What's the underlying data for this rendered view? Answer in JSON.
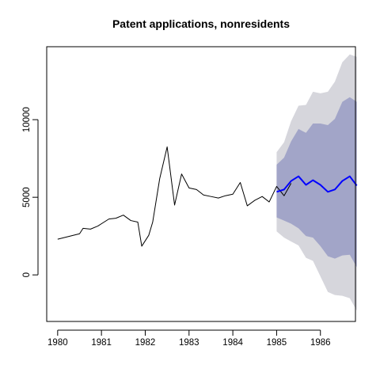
{
  "chart_data": {
    "type": "line",
    "title": "Patent applications, nonresidents",
    "xlabel": "",
    "ylabel": "",
    "xlim": [
      1979.75,
      1986.8
    ],
    "ylim": [
      -3000,
      14700
    ],
    "x_ticks": [
      1980,
      1981,
      1982,
      1983,
      1984,
      1985,
      1986
    ],
    "y_ticks": [
      0,
      5000,
      10000
    ],
    "grid": false,
    "legend": "none",
    "colors": {
      "history": "#000000",
      "forecast": "#0000ff",
      "band_80": "#a2a5c8",
      "band_95": "#d6d6dc"
    },
    "series": [
      {
        "role": "history",
        "points": [
          [
            1980.0,
            2300
          ],
          [
            1980.5,
            2650
          ],
          [
            1980.58,
            3000
          ],
          [
            1980.75,
            2950
          ],
          [
            1980.92,
            3150
          ],
          [
            1981.17,
            3600
          ],
          [
            1981.33,
            3650
          ],
          [
            1981.5,
            3850
          ],
          [
            1981.67,
            3500
          ],
          [
            1981.83,
            3400
          ],
          [
            1981.92,
            1850
          ],
          [
            1982.08,
            2550
          ],
          [
            1982.17,
            3400
          ],
          [
            1982.33,
            6200
          ],
          [
            1982.5,
            8250
          ],
          [
            1982.67,
            4500
          ],
          [
            1982.83,
            6500
          ],
          [
            1983.0,
            5600
          ],
          [
            1983.17,
            5500
          ],
          [
            1983.33,
            5150
          ],
          [
            1983.5,
            5050
          ],
          [
            1983.67,
            4950
          ],
          [
            1983.83,
            5100
          ],
          [
            1984.0,
            5200
          ],
          [
            1984.17,
            5950
          ],
          [
            1984.33,
            4450
          ],
          [
            1984.5,
            4800
          ],
          [
            1984.67,
            5050
          ],
          [
            1984.83,
            4700
          ],
          [
            1985.0,
            5700
          ],
          [
            1985.17,
            5100
          ],
          [
            1985.33,
            5900
          ]
        ]
      },
      {
        "role": "forecast",
        "points": [
          [
            1985.0,
            5350
          ],
          [
            1985.17,
            5500
          ],
          [
            1985.33,
            6050
          ],
          [
            1985.5,
            6350
          ],
          [
            1985.67,
            5800
          ],
          [
            1985.83,
            6100
          ],
          [
            1986.0,
            5800
          ],
          [
            1986.17,
            5350
          ],
          [
            1986.33,
            5500
          ],
          [
            1986.5,
            6050
          ],
          [
            1986.67,
            6350
          ],
          [
            1986.83,
            5750
          ]
        ],
        "lower_80": [
          3700,
          3500,
          3300,
          3000,
          2500,
          2400,
          1850,
          1200,
          1050,
          1250,
          1300,
          500
        ],
        "upper_80": [
          7100,
          7550,
          8600,
          9400,
          9150,
          9750,
          9750,
          9650,
          10050,
          11150,
          11450,
          11150
        ],
        "lower_95": [
          2800,
          2400,
          2150,
          1900,
          1100,
          900,
          -100,
          -1100,
          -1300,
          -1350,
          -1500,
          -2300
        ],
        "upper_95": [
          7900,
          8550,
          9900,
          10900,
          10950,
          11800,
          11700,
          11800,
          12450,
          13700,
          14200,
          14050
        ]
      }
    ]
  }
}
